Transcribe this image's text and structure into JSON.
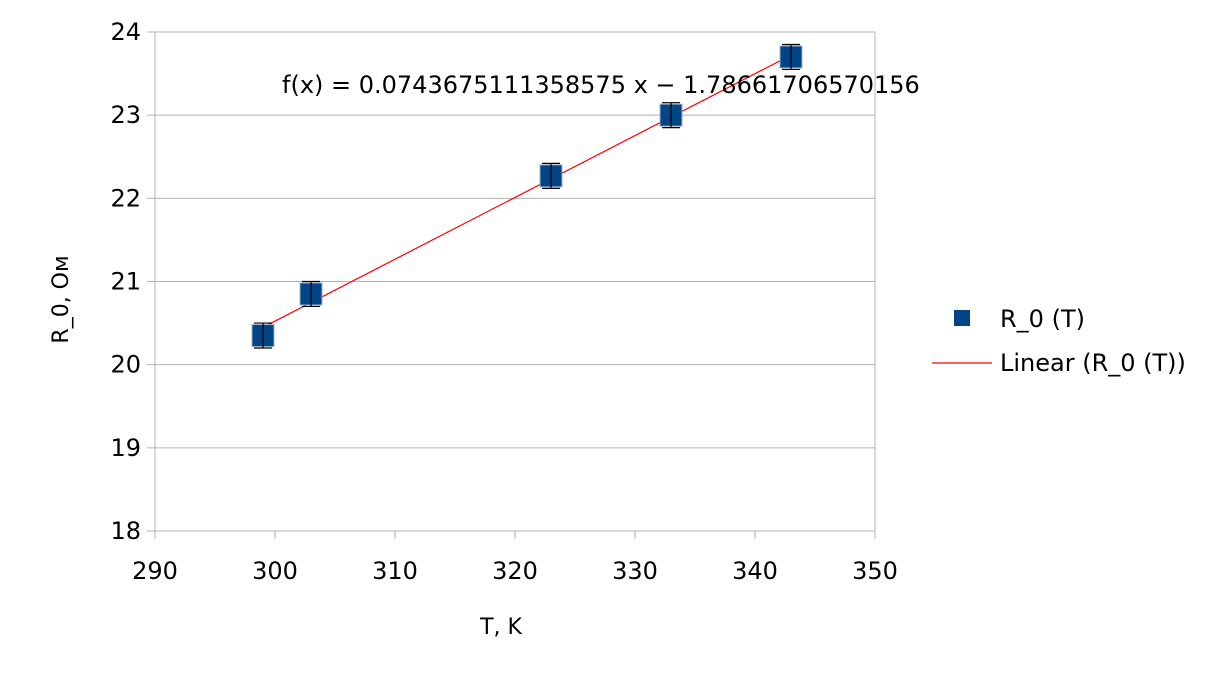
{
  "chart_data": {
    "type": "scatter",
    "xlabel": "T, K",
    "ylabel": "R_0, Ом",
    "xlim": [
      290,
      350
    ],
    "ylim": [
      18,
      24
    ],
    "x_ticks": [
      290,
      300,
      310,
      320,
      330,
      340,
      350
    ],
    "y_ticks": [
      18,
      19,
      20,
      21,
      22,
      23,
      24
    ],
    "grid": "horizontal",
    "legend_position": "right",
    "series": [
      {
        "name": "R_0 (T)",
        "marker": "square",
        "color": "#004586",
        "x": [
          299,
          303,
          323,
          333,
          343
        ],
        "y": [
          20.35,
          20.85,
          22.27,
          23.0,
          23.7
        ],
        "error_y": 0.15
      }
    ],
    "trendline": {
      "name": "Linear (R_0 (T))",
      "type": "linear",
      "color": "#ff0000",
      "slope": 0.0743675111358575,
      "intercept": -1.78661706570156,
      "x_range": [
        299,
        343
      ],
      "equation": "f(x) = 0.0743675111358575 x − 1.78661706570156"
    }
  }
}
